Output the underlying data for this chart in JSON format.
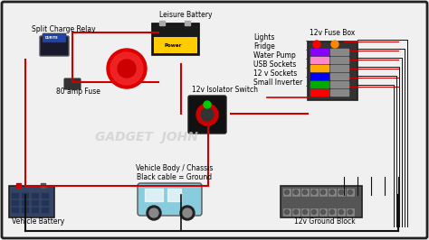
{
  "bg_color": "#f0f0f0",
  "border_color": "#222222",
  "red_wire_color": "#cc0000",
  "black_wire_color": "#111111",
  "title": "",
  "labels": {
    "split_charge_relay": "Split Charge Relay",
    "leisure_battery": "Leisure Battery",
    "lights": "Lights",
    "fridge": "Fridge",
    "water_pump": "Water Pump",
    "usb_sockets": "USB Sockets",
    "12v_sockets": "12 v Sockets",
    "small_inverter": "Small Inverter",
    "fuse_box": "12v Fuse Box",
    "isolator": "12v Isolator Switch",
    "fuse_80": "80 amp Fuse",
    "gadget_john": "GADGET  JOHN",
    "vehicle_battery": "Vehicle Battery",
    "vehicle_body": "Vehicle Body / Chassis\nBlack cable = Ground",
    "ground_block": "12v Ground Block"
  },
  "label_fontsize": 5.5,
  "gadget_john_fontsize": 10,
  "component_colors": {
    "relay_body": "#1a1a2e",
    "relay_top": "#cc3300",
    "leisure_battery_body": "#111111",
    "leisure_battery_label": "#ffcc00",
    "fuse_box_body": "#222222",
    "fuse_box_fuses": [
      "#ff0000",
      "#00aa00",
      "#0000ff",
      "#ffaa00",
      "#ff88cc",
      "#8800ff"
    ],
    "isolator_body": "#111111",
    "isolator_knob": "#cc0000",
    "vehicle_battery_body": "#334466",
    "vehicle_body_color": "#88ccdd",
    "ground_block_color": "#555555",
    "red_circle": "#dd0000",
    "fuse_80_color": "#333333"
  }
}
